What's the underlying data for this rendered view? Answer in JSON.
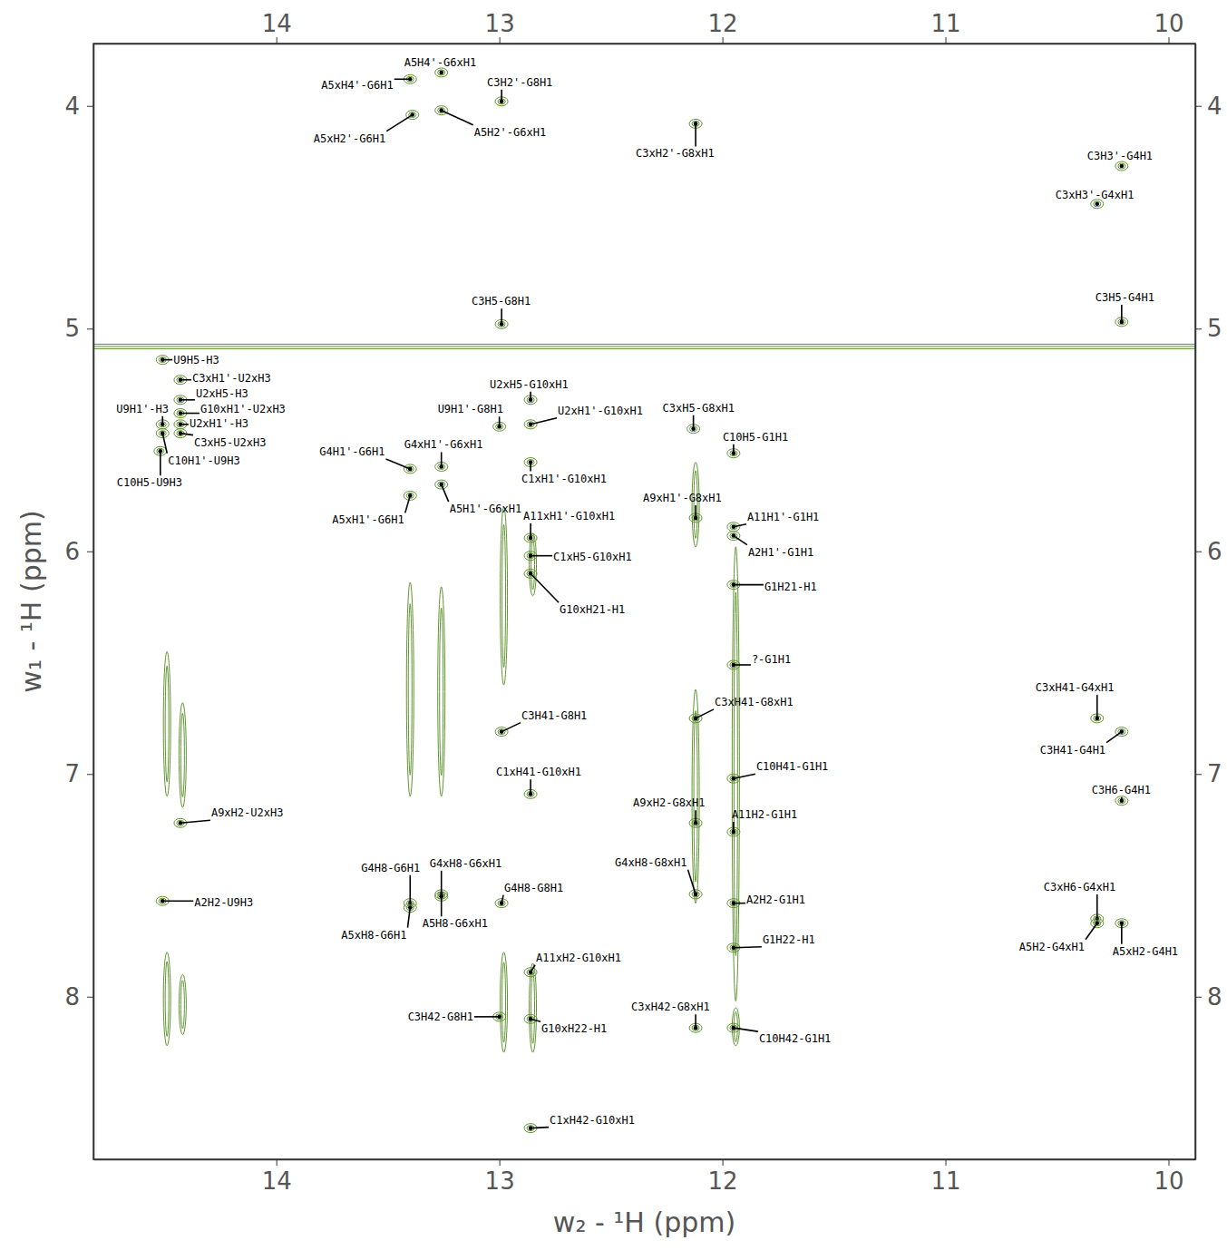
{
  "chart_data": {
    "type": "scatter",
    "x_label": "w₂ - ¹H (ppm)",
    "y_label": "w₁ - ¹H (ppm)",
    "xlim": [
      14.82,
      9.88
    ],
    "ylim": [
      3.72,
      8.73
    ],
    "xticks": [
      14,
      13,
      12,
      11,
      10
    ],
    "yticks": [
      4,
      5,
      6,
      7,
      8
    ],
    "grid": false,
    "color": "#5f9430",
    "solvent_line": 5.08,
    "ridges": [
      {
        "x": 14.49,
        "y": [
          6.45,
          7.1
        ]
      },
      {
        "x": 14.49,
        "y": [
          7.8,
          8.22
        ]
      },
      {
        "x": 14.42,
        "y": [
          6.68,
          7.15
        ]
      },
      {
        "x": 14.42,
        "y": [
          7.9,
          8.17
        ]
      },
      {
        "x": 13.4,
        "y": [
          6.14,
          7.1
        ]
      },
      {
        "x": 13.26,
        "y": [
          6.16,
          7.1
        ]
      },
      {
        "x": 12.98,
        "y": [
          5.8,
          6.6
        ]
      },
      {
        "x": 12.98,
        "y": [
          7.8,
          8.25
        ]
      },
      {
        "x": 12.85,
        "y": [
          5.92,
          6.2
        ]
      },
      {
        "x": 12.85,
        "y": [
          7.85,
          8.25
        ]
      },
      {
        "x": 12.12,
        "y": [
          5.6,
          5.98
        ]
      },
      {
        "x": 12.12,
        "y": [
          6.62,
          7.58
        ]
      },
      {
        "x": 11.94,
        "y": [
          5.98,
          8.02
        ]
      },
      {
        "x": 11.94,
        "y": [
          8.05,
          8.22
        ]
      }
    ],
    "point_labels": [
      "A5H4'-G6xH1",
      "A5xH4'-G6H1",
      "C3H2'-G8H1",
      "A5xH2'-G6H1",
      "A5H2'-G6xH1",
      "C3xH2'-G8xH1",
      "C3H3'-G4H1",
      "C3xH3'-G4xH1",
      "C3H5-G8H1",
      "C3H5-G4H1",
      "U9H5-H3",
      "C3xH1'-U2xH3",
      "U2xH5-H3",
      "G10xH1'-U2xH3",
      "U9H1'-H3",
      "U2xH1'-H3",
      "C3xH5-U2xH3",
      "C10H1'-U9H3",
      "C10H5-U9H3",
      "U2xH5-G10xH1",
      "U9H1'-G8H1",
      "U2xH1'-G10xH1",
      "C3xH5-G8xH1",
      "C10H5-G1H1",
      "G4H1'-G6H1",
      "G4xH1'-G6xH1",
      "C1xH1'-G10xH1",
      "A5xH1'-G6H1",
      "A5H1'-G6xH1",
      "A9xH1'-G8xH1",
      "A11xH1'-G10xH1",
      "A11H1'-G1H1",
      "A2H1'-G1H1",
      "C1xH5-G10xH1",
      "G10xH21-H1",
      "G1H21-H1",
      "?-G1H1",
      "C3H41-G8H1",
      "C3xH41-G8xH1",
      "C1xH41-G10xH1",
      "C10H41-G1H1",
      "C3xH41-G4xH1",
      "C3H41-G4H1",
      "C3H6-G4H1",
      "A9xH2-U2xH3",
      "A2H2-U9H3",
      "A9xH2-G8xH1",
      "A11H2-G1H1",
      "G4H8-G6H1",
      "G4xH8-G6xH1",
      "A5xH8-G6H1",
      "A5H8-G6xH1",
      "G4H8-G8H1",
      "G4xH8-G8xH1",
      "A2H2-G1H1",
      "G1H22-H1",
      "C3xH6-G4xH1",
      "A5H2-G4xH1",
      "A5xH2-G4H1",
      "A11xH2-G10xH1",
      "C3H42-G8H1",
      "G10xH22-H1",
      "C3xH42-G8xH1",
      "C10H42-G1H1",
      "C1xH42-G10xH1"
    ],
    "x": [
      13.26,
      13.4,
      12.99,
      13.39,
      13.26,
      12.12,
      10.21,
      10.32,
      12.99,
      10.21,
      14.51,
      14.43,
      14.43,
      14.43,
      14.51,
      14.43,
      14.43,
      14.51,
      14.52,
      12.86,
      13.0,
      12.86,
      12.13,
      11.95,
      13.4,
      13.26,
      12.86,
      13.4,
      13.26,
      12.12,
      12.86,
      11.95,
      11.95,
      12.86,
      12.86,
      11.95,
      11.95,
      12.99,
      12.12,
      12.86,
      11.95,
      10.32,
      10.21,
      10.21,
      14.43,
      14.51,
      12.12,
      11.95,
      13.4,
      13.26,
      13.4,
      13.26,
      12.99,
      12.12,
      11.95,
      11.95,
      10.32,
      10.32,
      10.21,
      12.86,
      13.0,
      12.86,
      12.12,
      11.95,
      12.86
    ],
    "values": [
      3.85,
      3.88,
      3.98,
      4.04,
      4.02,
      4.08,
      4.27,
      4.44,
      4.98,
      4.97,
      5.14,
      5.23,
      5.32,
      5.38,
      5.43,
      5.43,
      5.47,
      5.47,
      5.55,
      5.32,
      5.44,
      5.43,
      5.45,
      5.56,
      5.63,
      5.62,
      5.6,
      5.75,
      5.7,
      5.85,
      5.94,
      5.89,
      5.93,
      6.02,
      6.1,
      6.15,
      6.51,
      6.81,
      6.75,
      7.09,
      7.02,
      6.75,
      6.81,
      7.12,
      7.22,
      7.57,
      7.22,
      7.26,
      7.58,
      7.54,
      7.6,
      7.55,
      7.58,
      7.54,
      7.58,
      7.78,
      7.65,
      7.67,
      7.67,
      7.89,
      8.09,
      8.1,
      8.14,
      8.14,
      8.59
    ]
  }
}
